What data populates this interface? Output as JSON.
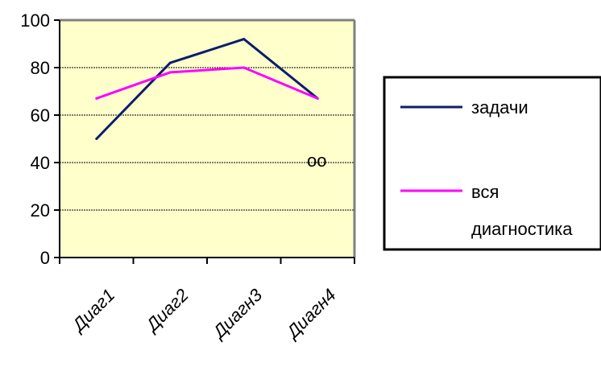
{
  "chart_data": {
    "type": "line",
    "categories": [
      "Диаг1",
      "Диаг2",
      "Диагн3",
      "Диагн4"
    ],
    "series": [
      {
        "name": "задачи",
        "values": [
          50,
          82,
          92,
          67
        ],
        "color": "#0b1e6b"
      },
      {
        "name_lines": [
          "вся",
          "диагностика"
        ],
        "values": [
          67,
          78,
          80,
          67
        ],
        "color": "#ff00ff"
      }
    ],
    "ylim": [
      0,
      100
    ],
    "yticks": [
      "0",
      "20",
      "40",
      "60",
      "80",
      "100"
    ],
    "grid": true,
    "legend_position": "right",
    "plot_background": "#ffffcc",
    "annotation": "оо"
  }
}
